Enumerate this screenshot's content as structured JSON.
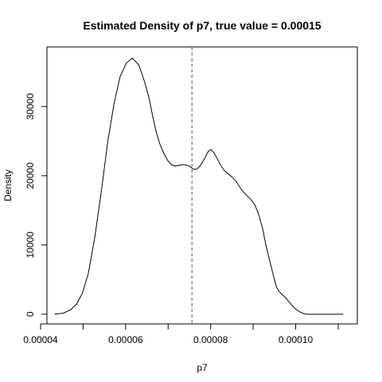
{
  "chart_data": {
    "type": "line",
    "title": "Estimated Density of p7, true value = 0.00015",
    "xlabel": "p7",
    "ylabel": "Density",
    "xlim": [
      4.15e-05,
      0.0001145
    ],
    "ylim": [
      -1400,
      38600
    ],
    "x_ticks": [
      {
        "value": 4e-05,
        "label": "0.00004"
      },
      {
        "value": 6e-05,
        "label": "0.00006"
      },
      {
        "value": 8e-05,
        "label": "0.00008"
      },
      {
        "value": 0.0001,
        "label": "0.00010"
      }
    ],
    "x_minor_ticks": [
      5e-05,
      7e-05,
      9e-05,
      0.00011
    ],
    "y_ticks": [
      {
        "value": 0,
        "label": "0"
      },
      {
        "value": 10000,
        "label": "10000"
      },
      {
        "value": 20000,
        "label": "20000"
      },
      {
        "value": 30000,
        "label": "30000"
      }
    ],
    "reference_line": {
      "x": 7.56e-05,
      "style": "dashed",
      "color": "#555555"
    },
    "series": [
      {
        "color": "#000000",
        "x": [
          4.33e-05,
          4.53e-05,
          4.7e-05,
          4.85e-05,
          4.98e-05,
          5.12e-05,
          5.27e-05,
          5.43e-05,
          5.58e-05,
          5.73e-05,
          5.87e-05,
          6.02e-05,
          6.16e-05,
          6.31e-05,
          6.45e-05,
          6.56e-05,
          6.64e-05,
          6.72e-05,
          6.81e-05,
          6.9e-05,
          6.99e-05,
          7.08e-05,
          7.17e-05,
          7.26e-05,
          7.35e-05,
          7.43e-05,
          7.5e-05,
          7.58e-05,
          7.66e-05,
          7.75e-05,
          7.85e-05,
          7.94e-05,
          8.01e-05,
          8.08e-05,
          8.15e-05,
          8.23e-05,
          8.3e-05,
          8.38e-05,
          8.45e-05,
          8.52e-05,
          8.6e-05,
          8.67e-05,
          8.75e-05,
          8.84e-05,
          8.94e-05,
          9.03e-05,
          9.12e-05,
          9.22e-05,
          9.31e-05,
          9.41e-05,
          9.5e-05,
          9.55e-05,
          9.62e-05,
          9.69e-05,
          9.76e-05,
          9.83e-05,
          9.91e-05,
          9.99e-05,
          0.0001008,
          0.0001016,
          0.0001025,
          0.0001036,
          0.0001051,
          0.0001066,
          0.000108,
          0.0001095,
          0.0001112
        ],
        "y": [
          0,
          150,
          600,
          1500,
          3000,
          5800,
          10900,
          17800,
          24900,
          30500,
          34300,
          36300,
          37000,
          36000,
          33500,
          31000,
          28500,
          26300,
          24500,
          23200,
          22200,
          21600,
          21400,
          21500,
          21600,
          21550,
          21400,
          21000,
          20900,
          21400,
          22400,
          23500,
          23800,
          23300,
          22500,
          21600,
          20900,
          20400,
          20100,
          19700,
          19200,
          18500,
          17800,
          17200,
          16600,
          15900,
          14600,
          12400,
          9700,
          7200,
          5000,
          3900,
          3200,
          2800,
          2400,
          1900,
          1300,
          800,
          400,
          150,
          0,
          0,
          0,
          0,
          0,
          0,
          0
        ]
      }
    ]
  }
}
